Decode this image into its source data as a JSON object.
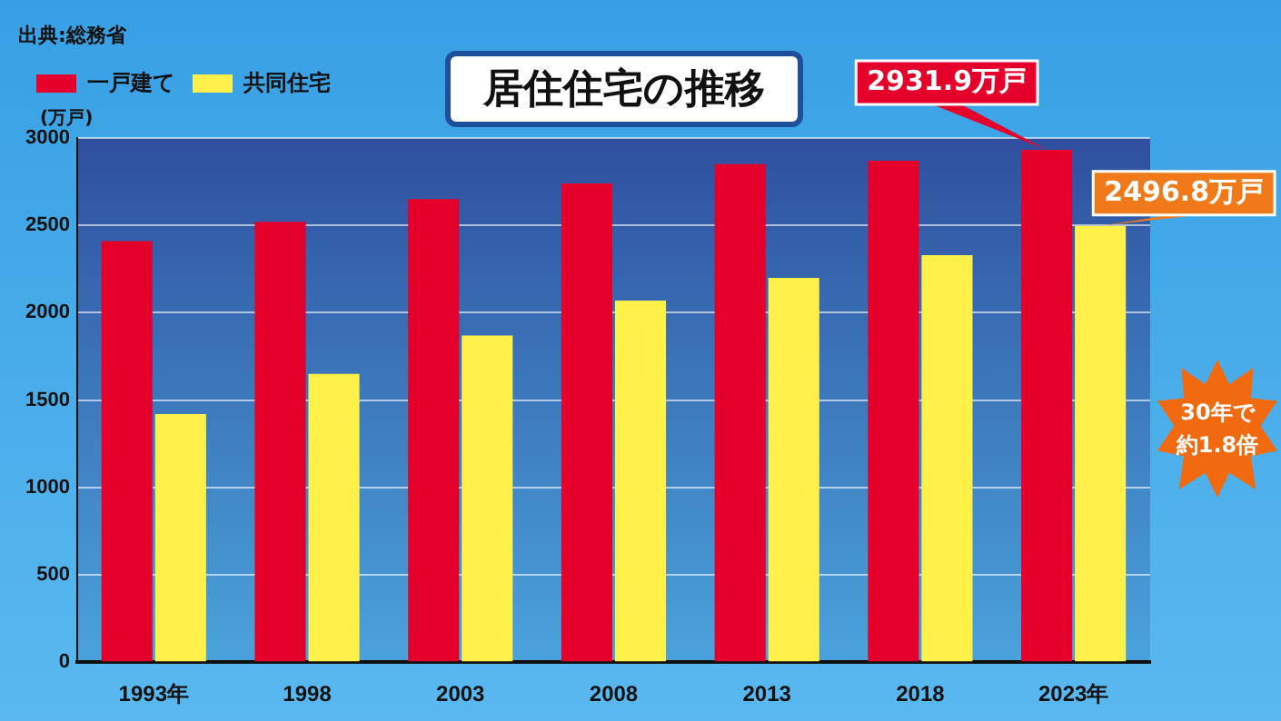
{
  "chart_data": {
    "type": "bar",
    "title": "居住住宅の推移",
    "ylabel": "(万戸)",
    "categories": [
      "1993年",
      "1998",
      "2003",
      "2008",
      "2013",
      "2018",
      "2023年"
    ],
    "series": [
      {
        "name": "一戸建て",
        "color": "#e4002b",
        "values": [
          2410,
          2520,
          2650,
          2740,
          2850,
          2870,
          2931.9
        ],
        "value_labels": [
          null,
          null,
          null,
          null,
          null,
          null,
          "2931.9万戸"
        ]
      },
      {
        "name": "共同住宅",
        "color": "#fff04a",
        "values": [
          1420,
          1650,
          1870,
          2070,
          2200,
          2330,
          2496.8
        ],
        "value_labels": [
          null,
          null,
          null,
          null,
          null,
          null,
          "2496.8万戸"
        ]
      }
    ],
    "ylim": [
      0,
      3000
    ],
    "yticks": [
      0,
      500,
      1000,
      1500,
      2000,
      2500,
      3000
    ],
    "grid": "y",
    "legend": "top left",
    "annotations": [
      "出典:総務省",
      "30年で約1.8倍"
    ]
  }
}
